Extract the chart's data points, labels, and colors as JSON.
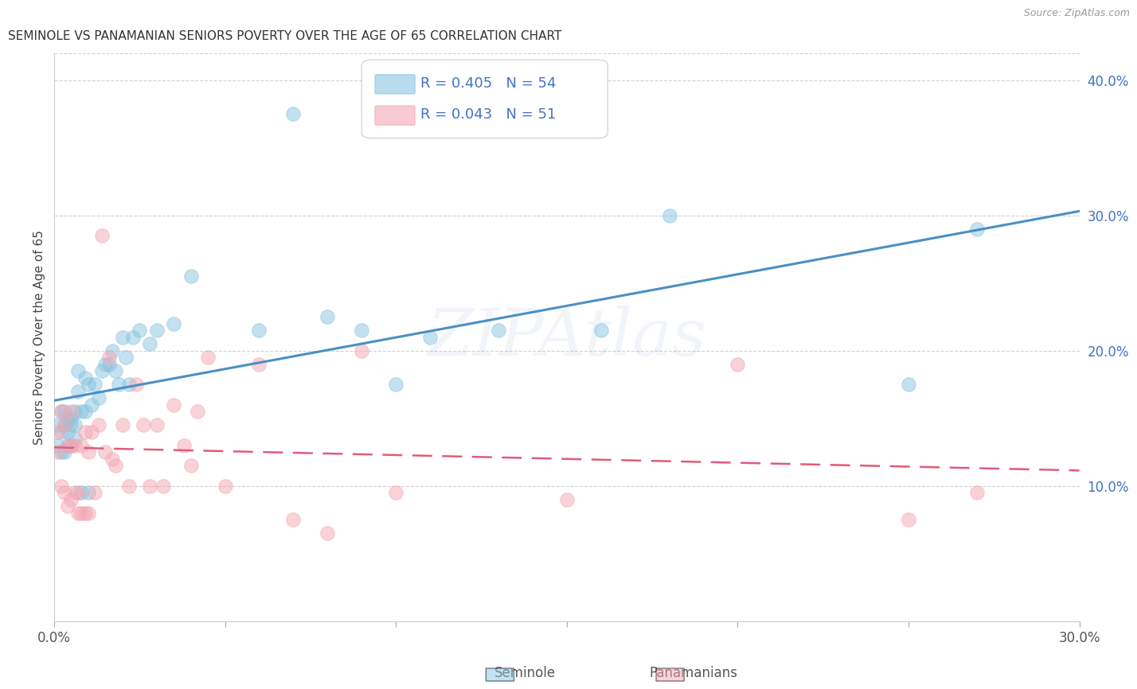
{
  "title": "SEMINOLE VS PANAMANIAN SENIORS POVERTY OVER THE AGE OF 65 CORRELATION CHART",
  "source": "Source: ZipAtlas.com",
  "ylabel": "Seniors Poverty Over the Age of 65",
  "xlim": [
    0.0,
    0.3
  ],
  "ylim": [
    0.0,
    0.42
  ],
  "xticks": [
    0.0,
    0.05,
    0.1,
    0.15,
    0.2,
    0.25,
    0.3
  ],
  "xtick_labels": [
    "0.0%",
    "",
    "",
    "",
    "",
    "",
    "30.0%"
  ],
  "ytick_labels_right": [
    "10.0%",
    "20.0%",
    "30.0%",
    "40.0%"
  ],
  "ytick_vals_right": [
    0.1,
    0.2,
    0.3,
    0.4
  ],
  "background_color": "#ffffff",
  "seminole_color": "#89c4e1",
  "panamanian_color": "#f4a7b3",
  "seminole_line_color": "#4a90c4",
  "panamanian_line_color": "#e05c7a",
  "legend_R_seminole": "R = 0.405",
  "legend_N_seminole": "N = 54",
  "legend_R_panamanian": "R = 0.043",
  "legend_N_panamanian": "N = 51",
  "watermark": "ZIPAtlas",
  "seminole_x": [
    0.001,
    0.001,
    0.002,
    0.002,
    0.002,
    0.003,
    0.003,
    0.003,
    0.004,
    0.004,
    0.004,
    0.005,
    0.005,
    0.005,
    0.006,
    0.006,
    0.006,
    0.007,
    0.007,
    0.008,
    0.008,
    0.009,
    0.009,
    0.01,
    0.01,
    0.011,
    0.012,
    0.013,
    0.014,
    0.015,
    0.016,
    0.017,
    0.018,
    0.019,
    0.02,
    0.021,
    0.022,
    0.023,
    0.025,
    0.028,
    0.03,
    0.035,
    0.04,
    0.06,
    0.07,
    0.08,
    0.09,
    0.1,
    0.11,
    0.13,
    0.16,
    0.18,
    0.25,
    0.27
  ],
  "seminole_y": [
    0.13,
    0.145,
    0.155,
    0.125,
    0.14,
    0.145,
    0.155,
    0.125,
    0.15,
    0.14,
    0.13,
    0.15,
    0.145,
    0.13,
    0.155,
    0.145,
    0.135,
    0.185,
    0.17,
    0.155,
    0.095,
    0.18,
    0.155,
    0.175,
    0.095,
    0.16,
    0.175,
    0.165,
    0.185,
    0.19,
    0.19,
    0.2,
    0.185,
    0.175,
    0.21,
    0.195,
    0.175,
    0.21,
    0.215,
    0.205,
    0.215,
    0.22,
    0.255,
    0.215,
    0.375,
    0.225,
    0.215,
    0.175,
    0.21,
    0.215,
    0.215,
    0.3,
    0.175,
    0.29
  ],
  "panamanian_x": [
    0.001,
    0.001,
    0.002,
    0.002,
    0.003,
    0.003,
    0.004,
    0.004,
    0.005,
    0.005,
    0.005,
    0.006,
    0.006,
    0.007,
    0.007,
    0.008,
    0.008,
    0.009,
    0.009,
    0.01,
    0.01,
    0.011,
    0.012,
    0.013,
    0.014,
    0.015,
    0.016,
    0.017,
    0.018,
    0.02,
    0.022,
    0.024,
    0.026,
    0.028,
    0.03,
    0.032,
    0.035,
    0.038,
    0.04,
    0.042,
    0.045,
    0.05,
    0.06,
    0.07,
    0.08,
    0.09,
    0.1,
    0.15,
    0.2,
    0.25,
    0.27
  ],
  "panamanian_y": [
    0.125,
    0.14,
    0.155,
    0.1,
    0.145,
    0.095,
    0.13,
    0.085,
    0.155,
    0.09,
    0.13,
    0.095,
    0.13,
    0.08,
    0.095,
    0.13,
    0.08,
    0.14,
    0.08,
    0.125,
    0.08,
    0.14,
    0.095,
    0.145,
    0.285,
    0.125,
    0.195,
    0.12,
    0.115,
    0.145,
    0.1,
    0.175,
    0.145,
    0.1,
    0.145,
    0.1,
    0.16,
    0.13,
    0.115,
    0.155,
    0.195,
    0.1,
    0.19,
    0.075,
    0.065,
    0.2,
    0.095,
    0.09,
    0.19,
    0.075,
    0.095
  ]
}
